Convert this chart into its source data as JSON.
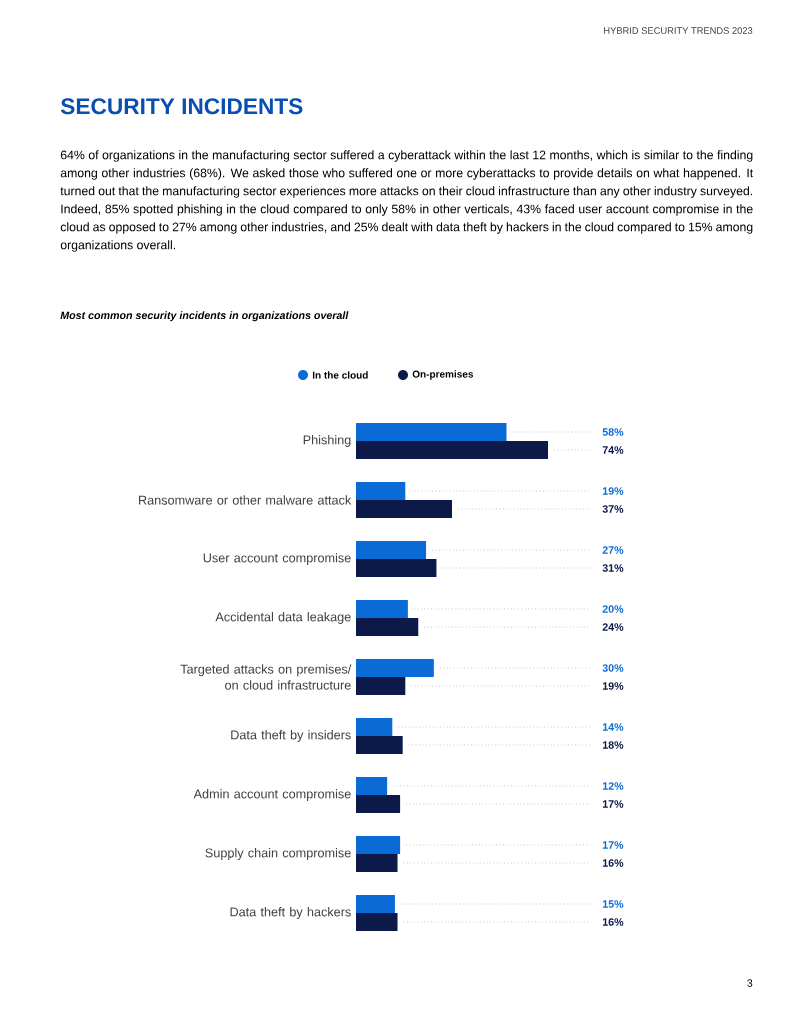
{
  "chart_data": {
    "type": "bar",
    "orientation": "horizontal",
    "title": "SECURITY INCIDENTS",
    "subtitle": "64% of organizations in the manufacturing sector suffered a cyberattack within the last 12 months, which is similar to the finding among other industries (68%). We asked those who suffered one or more cyberattacks to provide details on what happened. It turned out that the manufacturing sector experiences more attacks on their cloud infrastructure than any other industry surveyed. Indeed, 85% spotted phishing in the cloud compared to only 58% in other verticals, 43% faced user account compromise in the cloud as opposed to 27% among other industries, and 25% dealt with data theft by hackers in the cloud compared to 15% among organizations overall.",
    "annotations": [
      "HYBRID SECURITY TRENDS 2023",
      "Most common security incidents in organizations overall",
      "3"
    ],
    "categories": [
      "Phishing",
      "Ransomware or other malware attack",
      "User account compromise",
      "Accidental data leakage",
      "Targeted attacks on premises/ on cloud infrastructure",
      "Data theft by insiders",
      "Admin account compromise",
      "Supply chain compromise",
      "Data theft by hackers"
    ],
    "series": [
      {
        "name": "In the cloud",
        "color": "#0b6bd6",
        "values": [
          58,
          19,
          27,
          20,
          30,
          14,
          12,
          17,
          15
        ],
        "value_labels": [
          "58%",
          "19%",
          "27%",
          "20%",
          "30%",
          "14%",
          "12%",
          "17%",
          "15%"
        ]
      },
      {
        "name": "On-premises",
        "color": "#0c1a4a",
        "values": [
          74,
          37,
          31,
          24,
          19,
          18,
          17,
          16,
          16
        ],
        "value_labels": [
          "74%",
          "37%",
          "31%",
          "24%",
          "19%",
          "18%",
          "17%",
          "16%",
          "16%"
        ]
      }
    ],
    "legend": "top"
  }
}
